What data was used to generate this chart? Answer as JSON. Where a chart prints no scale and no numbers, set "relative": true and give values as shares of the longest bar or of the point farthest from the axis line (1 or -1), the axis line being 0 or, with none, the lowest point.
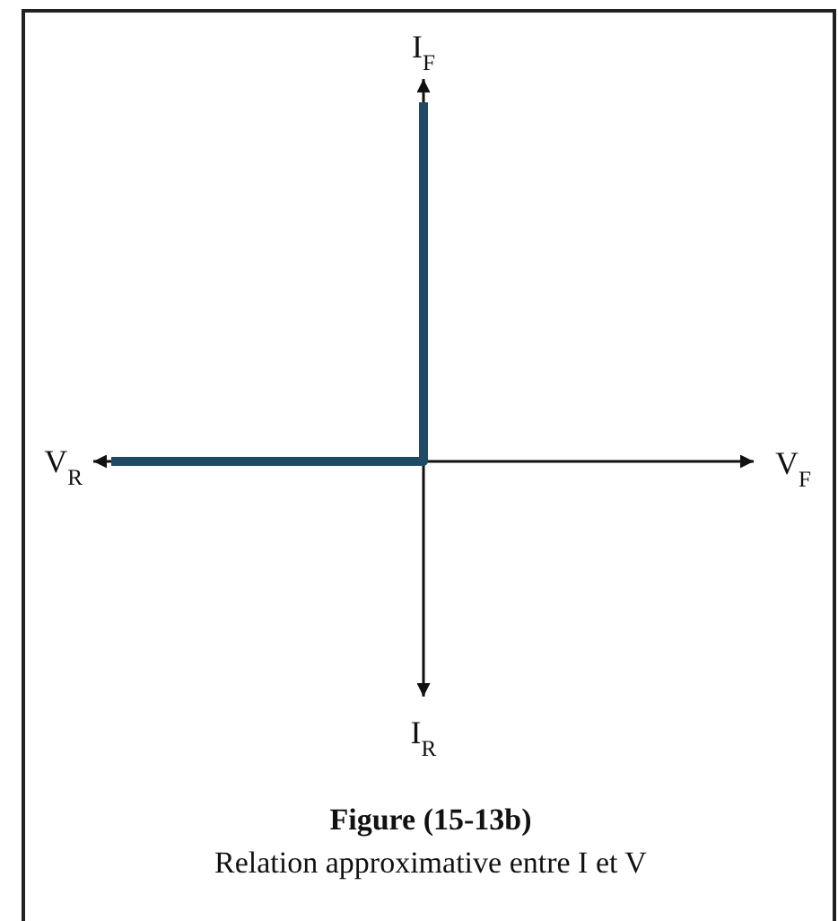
{
  "chart_data": {
    "type": "step",
    "relative": true,
    "categories": [
      null,
      null,
      null
    ],
    "values": [
      0,
      1,
      null
    ],
    "color": "#1f4a66",
    "line_style": "solid",
    "ylabel": "I$_{F}$",
    "annotations": [
      "V$_{R}$",
      "V$_{F}$",
      "I$_{R}$"
    ],
    "title": "Figure (15-13b)",
    "subtitle": "Relation approximative entre I et V"
  }
}
